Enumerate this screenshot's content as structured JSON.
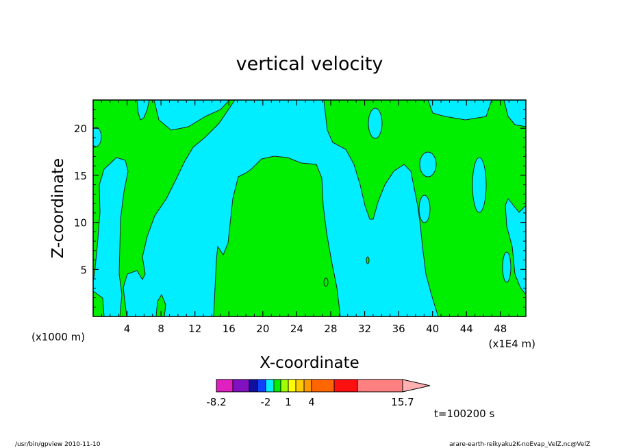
{
  "chart_data": {
    "type": "heatmap",
    "title": "vertical velocity",
    "xlabel": "X-coordinate",
    "ylabel": "Z-coordinate",
    "x_unit_label": "(x1E4 m)",
    "y_unit_label": "(x1000 m)",
    "xlim": [
      0,
      51
    ],
    "ylim": [
      0,
      23
    ],
    "x_ticks": [
      4,
      8,
      12,
      16,
      20,
      24,
      28,
      32,
      36,
      40,
      44,
      48
    ],
    "x_tick_labels": [
      "4",
      "8",
      "12",
      "16",
      "20",
      "24",
      "28",
      "32",
      "36",
      "40",
      "44",
      "48"
    ],
    "y_ticks": [
      5,
      10,
      15,
      20
    ],
    "y_tick_labels": [
      "5",
      "10",
      "15",
      "20"
    ],
    "colors": {
      "negative": "#00eeff",
      "positive": "#00ee00"
    },
    "colorbar": {
      "colors": [
        "#e020c0",
        "#8010c0",
        "#1010a0",
        "#1040ff",
        "#00eeff",
        "#00ee00",
        "#a0ff00",
        "#ffff00",
        "#ffcc00",
        "#ff9900",
        "#ff6600",
        "#ff1010",
        "#ff8080",
        "#ffb0b0"
      ],
      "labels": [
        "-8.2",
        "-2",
        "1",
        "4",
        "15.7"
      ]
    },
    "time_label": "t=100200 s"
  },
  "footer": {
    "left": "/usr/bin/gpview  2010-11-10",
    "right": "arare-earth-reikyaku2K-noEvap_VelZ.nc@VelZ"
  }
}
